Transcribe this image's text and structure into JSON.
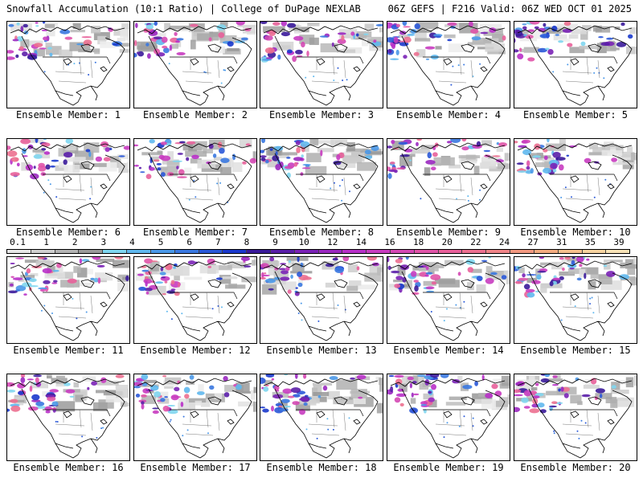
{
  "header": {
    "left": "Snowfall Accumulation (10:1 Ratio) | College of DuPage NEXLAB",
    "right": "06Z GEFS | F216 Valid: 06Z WED OCT 01 2025"
  },
  "panels": [
    {
      "caption": "Ensemble Member: 1"
    },
    {
      "caption": "Ensemble Member: 2"
    },
    {
      "caption": "Ensemble Member: 3"
    },
    {
      "caption": "Ensemble Member: 4"
    },
    {
      "caption": "Ensemble Member: 5"
    },
    {
      "caption": "Ensemble Member: 6"
    },
    {
      "caption": "Ensemble Member: 7"
    },
    {
      "caption": "Ensemble Member: 8"
    },
    {
      "caption": "Ensemble Member: 9"
    },
    {
      "caption": "Ensemble Member: 10"
    },
    {
      "caption": "Ensemble Member: 11"
    },
    {
      "caption": "Ensemble Member: 12"
    },
    {
      "caption": "Ensemble Member: 13"
    },
    {
      "caption": "Ensemble Member: 14"
    },
    {
      "caption": "Ensemble Member: 15"
    },
    {
      "caption": "Ensemble Member: 16"
    },
    {
      "caption": "Ensemble Member: 17"
    },
    {
      "caption": "Ensemble Member: 18"
    },
    {
      "caption": "Ensemble Member: 19"
    },
    {
      "caption": "Ensemble Member: 20"
    }
  ],
  "colorbar": {
    "labels": [
      "0.1",
      "1",
      "2",
      "3",
      "4",
      "5",
      "6",
      "7",
      "8",
      "9",
      "10",
      "12",
      "14",
      "16",
      "18",
      "20",
      "22",
      "24",
      "27",
      "31",
      "35",
      "39"
    ],
    "colors": [
      "#e8e8e8",
      "#d0d0d0",
      "#b4b4b4",
      "#9a9a9a",
      "#7fd6f0",
      "#5fb8ee",
      "#4a98e8",
      "#3a78e0",
      "#2a58d8",
      "#1a38cc",
      "#3a1a9a",
      "#5a1ea8",
      "#7a22b6",
      "#9a28c0",
      "#b830c8",
      "#c83cc0",
      "#d448b4",
      "#e054a8",
      "#e8609a",
      "#ec7090",
      "#f08488",
      "#f29880",
      "#f4ac80",
      "#f6c08c",
      "#f8d4a0",
      "#fae4b8"
    ]
  },
  "legend_unit": ""
}
